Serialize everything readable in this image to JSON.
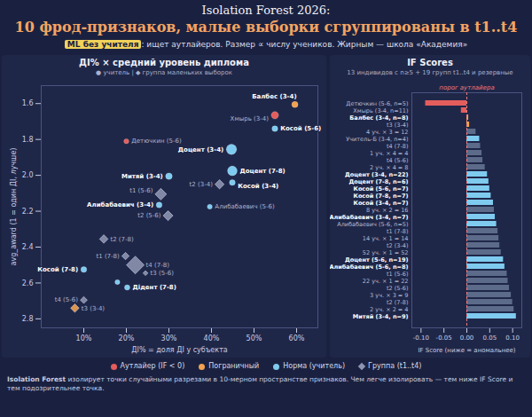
{
  "header": {
    "title": "Isolation Forest 2026:",
    "title2": "10 фрод-признаков, малые выборки сгруппированы в t1..t4",
    "subtitle_tag": "ML без учителя",
    "subtitle": ": ищет аутлайеров. Размер ∝ числу учеников. Жирным — школа «Академия»"
  },
  "footer": {
    "bold": "Isolation Forest",
    "text": " изолирует точки случайными разрезами в 10-мерном пространстве признаков. Чем легче изолировать — тем ниже IF Score и тем подозрительнее точка."
  },
  "chart_data": [
    {
      "type": "scatter",
      "title": "ДІ% × средний уровень диплома",
      "subtitle": "● учитель | ◆ группа маленьких выборок",
      "x_label": "ДІ% = доля ДІ у субъекта",
      "y_label": "avg_award (1 = один ДІ, лучше)",
      "xlim": [
        0,
        65
      ],
      "xticks": [
        {
          "value": 10,
          "label": "10%"
        },
        {
          "value": 20,
          "label": "20%"
        },
        {
          "value": 30,
          "label": "30%"
        },
        {
          "value": 40,
          "label": "40%"
        },
        {
          "value": 50,
          "label": "50%"
        },
        {
          "value": 60,
          "label": "60%"
        }
      ],
      "ylim": [
        2.85,
        1.5
      ],
      "yticks": [
        1.6,
        1.8,
        {
          "value": 2,
          "label": "2.0"
        },
        2.2,
        2.4,
        2.6,
        2.8
      ],
      "grid": false,
      "legend": "bottom",
      "series": [
        {
          "name": "Аутлайер (IF < 0)",
          "color": "#e35d5d",
          "marker": "circle",
          "labels": [
            "Хмырь (3-4)",
            "Детючкин (5-6)"
          ],
          "x": [
            54.9,
            20.0
          ],
          "y": [
            1.665,
            1.81
          ],
          "size": [
            11,
            5
          ],
          "markers": [
            "circle",
            "circle"
          ],
          "academy": [
            false,
            false
          ]
        },
        {
          "name": "Пограничный",
          "color": "#f2a24e",
          "marker": "circle",
          "labels": [
            "Балбес (3-4)",
            "t3 (3-4)"
          ],
          "x": [
            59.6,
            7.9
          ],
          "y": [
            1.605,
            2.74
          ],
          "size": [
            8,
            12
          ],
          "markers": [
            "circle",
            "diamond"
          ],
          "academy": [
            true,
            false
          ]
        },
        {
          "name": "Норма (учитель)",
          "color": "#7fcbef",
          "marker": "circle",
          "labels": [
            "Косой (5-6)",
            "Доцент (3-4)",
            "Доцент (7-8)",
            "Митяй (3-4)",
            "Косой (3-4)",
            "Алибабаевич (3-4)",
            "Алибабаевич (5-6)",
            "Косой (7-8)",
            null,
            "Дідент (7-8)"
          ],
          "x": [
            54.9,
            44.7,
            44.9,
            30.0,
            44.9,
            27.7,
            39.6,
            10.0,
            17.9,
            20.2
          ],
          "y": [
            1.74,
            1.855,
            1.975,
            2.005,
            2.04,
            2.165,
            2.175,
            2.525,
            2.595,
            2.625
          ],
          "size": [
            7,
            22,
            19,
            9,
            7,
            7,
            5,
            7,
            5,
            6
          ],
          "markers": [
            "circle",
            "circle",
            "circle",
            "circle",
            "circle",
            "circle",
            "circle",
            "circle",
            "circle",
            "circle"
          ],
          "academy": [
            true,
            true,
            true,
            true,
            true,
            true,
            false,
            true,
            false,
            true
          ]
        },
        {
          "name": "Группа (t1..t4)",
          "color": "#8b94b0",
          "marker": "diamond",
          "labels": [
            "t1 (5-6)",
            "t2 (3-4)",
            "t2 (5-6)",
            "t2 (7-8)",
            "t1 (7-8)",
            "t4 (7-8)",
            "t3 (5-6)",
            "t4 (5-6)"
          ],
          "x": [
            28.1,
            41.9,
            29.8,
            14.7,
            19.8,
            22.1,
            24.5,
            10.0
          ],
          "y": [
            2.105,
            2.05,
            2.225,
            2.355,
            2.45,
            2.5,
            2.545,
            2.695
          ],
          "size": [
            22,
            14,
            16,
            12,
            9,
            52,
            4,
            8
          ],
          "markers": [
            "diamond",
            "diamond",
            "diamond",
            "diamond",
            "diamond",
            "diamond",
            "diamond",
            "diamond"
          ],
          "academy": [
            false,
            false,
            false,
            false,
            false,
            false,
            false,
            false
          ]
        }
      ]
    },
    {
      "type": "bar",
      "orientation": "horizontal",
      "title": "IF Scores",
      "subtitle": "13 индивидов с n≥5 + 19 групп t1..t4 и резервные",
      "x_label": "IF Score (ниже = аномальнее)",
      "xlim": [
        -0.12,
        0.12
      ],
      "xticks": [
        {
          "value": -0.1,
          "label": "-0.10"
        },
        {
          "value": -0.05,
          "label": "-0.05"
        },
        {
          "value": 0,
          "label": "0.00"
        },
        {
          "value": 0.05,
          "label": "0.05"
        },
        {
          "value": 0.1,
          "label": "0.10"
        }
      ],
      "threshold": 0,
      "threshold_label": "порог аутлайера",
      "categories": [
        "Детючкин (5-6, n=5)",
        "Хмырь (3-4, n=11)",
        "Балбес (3-4, n=8)",
        "t3 (3-4)",
        "4 уч. × 3 = 12",
        "Учитель-Б (3-4, n=4)",
        "t4 (7-8)",
        "1 уч. × 4 = 4",
        "t4 (5-6)",
        "2 уч. × 4 = 8",
        "Доцент (3-4, n=22)",
        "Доцент (7-8, n=6)",
        "Косой (5-6, n=7)",
        "Косой (7-8, n=7)",
        "Косой (3-4, n=7)",
        "8 уч. × 2 = 16",
        "Алибабаевич (3-4, n=7)",
        "Алибабаевич (5-6, n=5)",
        "t1 (7-8)",
        "14 уч. × 1 = 14",
        "t2 (3-4)",
        "52 уч. × 1 = 52",
        "Доцент (5-6, n=19)",
        "Алибабаевич (5-6, n=8)",
        "t1 (5-6)",
        "22 уч. × 1 = 22",
        "t2 (5-6)",
        "3 уч. × 3 = 9",
        "t2 (7-8)",
        "2 уч. × 2 = 4",
        "Митяй (3-4, n=9)"
      ],
      "values": [
        -0.09,
        -0.012,
        0.004,
        0.006,
        0.02,
        0.028,
        0.03,
        0.033,
        0.035,
        0.04,
        0.045,
        0.048,
        0.05,
        0.053,
        0.058,
        0.06,
        0.062,
        0.065,
        0.068,
        0.07,
        0.072,
        0.075,
        0.08,
        0.083,
        0.088,
        0.09,
        0.093,
        0.097,
        0.1,
        0.103,
        0.108
      ],
      "colors": [
        "#e35d5d",
        "#e35d5d",
        "#f2a24e",
        "#f2a24e",
        "#5d6b8a",
        "#7fcbef",
        "#5d6b8a",
        "#5d6b8a",
        "#5d6b8a",
        "#5d6b8a",
        "#7fcbef",
        "#7fcbef",
        "#7fcbef",
        "#7fcbef",
        "#7fcbef",
        "#5d6b8a",
        "#7fcbef",
        "#7fcbef",
        "#5d6b8a",
        "#5d6b8a",
        "#5d6b8a",
        "#5d6b8a",
        "#7fcbef",
        "#7fcbef",
        "#5d6b8a",
        "#5d6b8a",
        "#5d6b8a",
        "#5d6b8a",
        "#5d6b8a",
        "#5d6b8a",
        "#7fcbef"
      ],
      "academy": [
        false,
        false,
        true,
        false,
        false,
        false,
        false,
        false,
        false,
        false,
        true,
        true,
        true,
        true,
        true,
        false,
        true,
        false,
        false,
        false,
        false,
        false,
        true,
        true,
        false,
        false,
        false,
        false,
        false,
        false,
        true
      ]
    }
  ]
}
